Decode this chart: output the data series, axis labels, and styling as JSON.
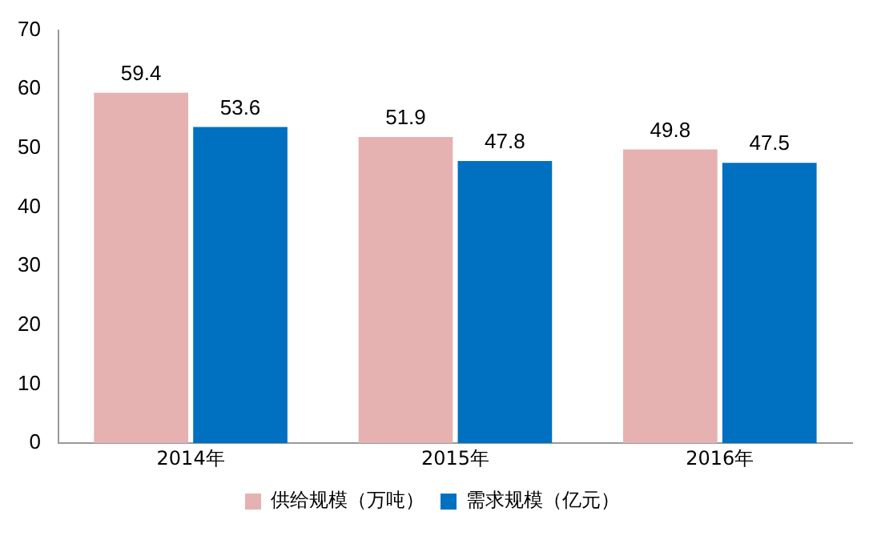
{
  "chart_data": {
    "type": "bar",
    "categories": [
      "2014年",
      "2015年",
      "2016年"
    ],
    "series": [
      {
        "name": "供给规模（万吨）",
        "color": "#e6b1b1",
        "values": [
          59.4,
          51.9,
          49.8
        ]
      },
      {
        "name": "需求规模（亿元）",
        "color": "#0070c0",
        "values": [
          53.6,
          47.8,
          47.5
        ]
      }
    ],
    "ylim": [
      0,
      70
    ],
    "yticks": [
      0,
      10,
      20,
      30,
      40,
      50,
      60,
      70
    ],
    "grid": false,
    "legend": "bottom",
    "data_labels": true
  }
}
